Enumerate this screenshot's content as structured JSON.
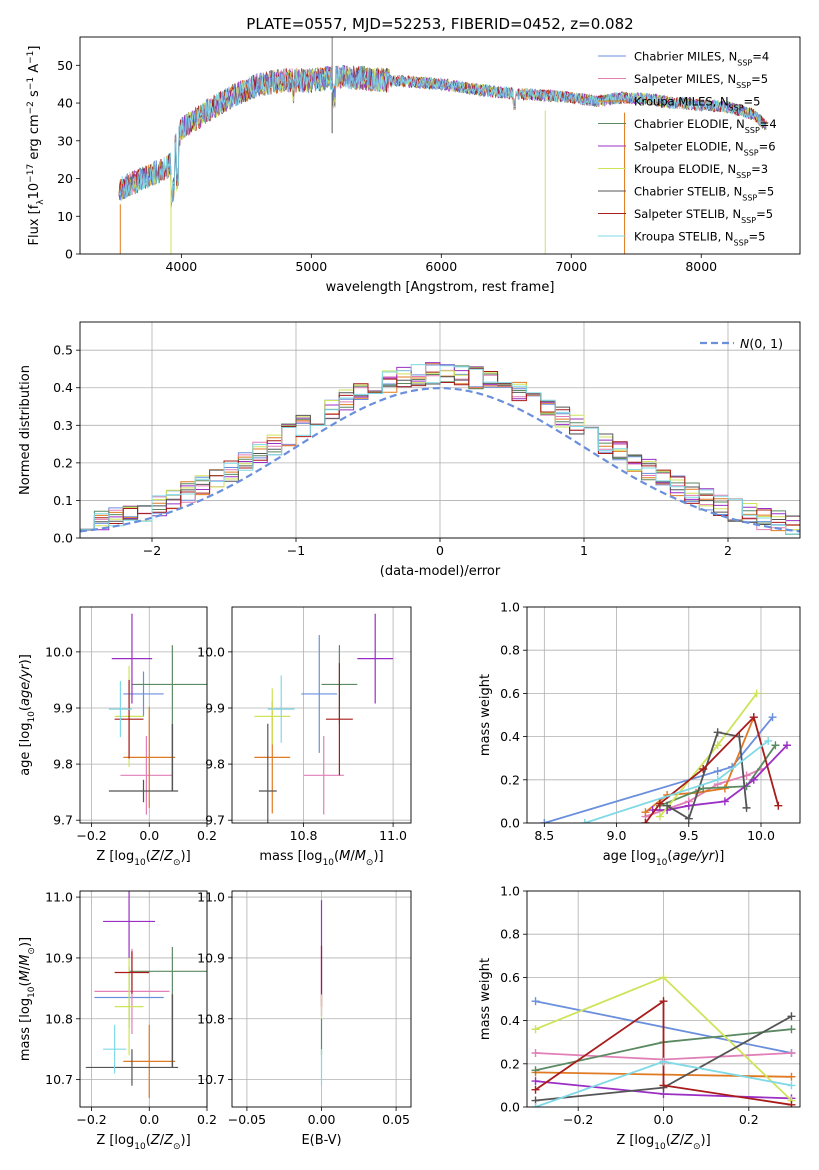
{
  "figure_title": "PLATE=0557, MJD=52253, FIBERID=0452, z=0.082",
  "colors": {
    "Chabrier MILES": "#6a8fdc",
    "Salpeter MILES": "#e17fb7",
    "Kroupa MILES": "#e07a22",
    "Chabrier ELODIE": "#5b8a62",
    "Salpeter ELODIE": "#9b2fc4",
    "Kroupa ELODIE": "#cfe35a",
    "Chabrier STELIB": "#555555",
    "Salpeter STELIB": "#a81c1c",
    "Kroupa STELIB": "#7fd9e6"
  },
  "chart_data": [
    {
      "id": "spectrum",
      "type": "line",
      "xlabel": "wavelength [Angstrom, rest frame]",
      "ylabel": "Flux [f_λ10^-17 erg cm^-2 s^-1 A^-1]",
      "xlim": [
        3220,
        8760
      ],
      "ylim": [
        0,
        57.5
      ],
      "xticks": [
        4000,
        5000,
        6000,
        7000,
        8000
      ],
      "yticks": [
        0,
        10,
        20,
        30,
        40,
        50
      ],
      "grid": false,
      "legend_position": "top-right",
      "legend": [
        {
          "model": "Chabrier MILES",
          "nssp": "4"
        },
        {
          "model": "Salpeter MILES",
          "nssp": "5"
        },
        {
          "model": "Kroupa MILES",
          "nssp": "5"
        },
        {
          "model": "Chabrier ELODIE",
          "nssp": "4"
        },
        {
          "model": "Salpeter ELODIE",
          "nssp": "6"
        },
        {
          "model": "Kroupa ELODIE",
          "nssp": "3"
        },
        {
          "model": "Chabrier STELIB",
          "nssp": "5"
        },
        {
          "model": "Salpeter STELIB",
          "nssp": "5"
        },
        {
          "model": "Kroupa STELIB",
          "nssp": "5"
        }
      ],
      "continuum": {
        "x": [
          3520,
          3700,
          3900,
          4000,
          4200,
          4400,
          4600,
          4800,
          5000,
          5200,
          5400,
          5600,
          5800,
          6000,
          6200,
          6400,
          6600,
          6800,
          7000,
          7200,
          7400,
          7600,
          7800,
          8000,
          8200,
          8400,
          8500
        ],
        "y": [
          17,
          20,
          23,
          33,
          38,
          42,
          45,
          46,
          46,
          47,
          46.5,
          46,
          45.5,
          45,
          44,
          43,
          42.5,
          42,
          41.5,
          40.5,
          41.5,
          41,
          40,
          39.5,
          39,
          37,
          34
        ]
      },
      "dropouts": [
        {
          "series": "Kroupa MILES",
          "x": 3530,
          "bottom": 0
        },
        {
          "series": "Kroupa ELODIE",
          "x": 3920,
          "bottom": 0
        },
        {
          "series": "Kroupa ELODIE",
          "x": 6800,
          "bottom": 0
        },
        {
          "series": "Kroupa MILES",
          "x": 7410,
          "bottom": 0
        },
        {
          "series": "Chabrier STELIB",
          "x": 5160,
          "bottom": 32
        }
      ]
    },
    {
      "id": "residual-histogram",
      "type": "histogram",
      "xlabel": "(data-model)/error",
      "ylabel": "Normed distribution",
      "xlim": [
        -2.5,
        2.5
      ],
      "ylim": [
        0,
        0.575
      ],
      "xticks": [
        -2,
        -1,
        0,
        1,
        2
      ],
      "yticks": [
        0.0,
        0.1,
        0.2,
        0.3,
        0.4,
        0.5
      ],
      "grid": true,
      "legend_position": "top-right",
      "reference_curve": {
        "label": "N(0,1)",
        "mean": 0,
        "sigma": 1,
        "color": "#6a8fdc"
      },
      "bin_width": 0.1,
      "bin_range": [
        -2.5,
        2.5
      ]
    },
    {
      "id": "age-vs-Z",
      "type": "errorbar",
      "xlabel": "Z [log10(Z/Z⊙)]",
      "ylabel": "age [log10(age/yr)]",
      "xlim": [
        -0.24,
        0.2
      ],
      "ylim": [
        9.695,
        10.08
      ],
      "xticks": [
        -0.2,
        0.0,
        0.2
      ],
      "yticks": [
        9.7,
        9.8,
        9.9,
        10.0
      ],
      "grid": true,
      "points": [
        {
          "series": "Chabrier MILES",
          "x": -0.02,
          "xerr": 0.07,
          "y": 9.925,
          "yerr": 0.04
        },
        {
          "series": "Salpeter MILES",
          "x": -0.01,
          "xerr": 0.09,
          "y": 9.78,
          "yerr": 0.07
        },
        {
          "series": "Kroupa MILES",
          "x": 0.0,
          "xerr": 0.09,
          "y": 9.812,
          "yerr": 0.09
        },
        {
          "series": "Chabrier ELODIE",
          "x": 0.08,
          "xerr": 0.14,
          "y": 9.942,
          "yerr": 0.07
        },
        {
          "series": "Salpeter ELODIE",
          "x": -0.06,
          "xerr": 0.07,
          "y": 9.988,
          "yerr": 0.08
        },
        {
          "series": "Kroupa ELODIE",
          "x": -0.07,
          "xerr": 0.05,
          "y": 9.885,
          "yerr": 0.09
        },
        {
          "series": "Chabrier STELIB",
          "x": -0.02,
          "xerr": 0.12,
          "y": 9.752,
          "yerr": 0.02
        },
        {
          "series": "Salpeter STELIB",
          "x": -0.07,
          "xerr": 0.05,
          "y": 9.88,
          "yerr": 0.07
        },
        {
          "series": "Kroupa STELIB",
          "x": -0.1,
          "xerr": 0.04,
          "y": 9.898,
          "yerr": 0.05
        }
      ],
      "extra_vlines": [
        {
          "series": "Chabrier STELIB",
          "x": 0.08,
          "y0": 9.752,
          "y1": 9.872
        }
      ]
    },
    {
      "id": "age-vs-mass",
      "type": "errorbar",
      "xlabel": "mass [log10(M/M⊙)]",
      "ylabel": "",
      "xlim": [
        10.64,
        11.04
      ],
      "ylim": [
        9.695,
        10.08
      ],
      "xticks": [
        10.8,
        11.0
      ],
      "yticks": [
        9.7,
        9.8,
        9.9,
        10.0
      ],
      "grid": true,
      "points": [
        {
          "series": "Chabrier MILES",
          "x": 10.835,
          "xerr": 0.04,
          "y": 9.925,
          "yerr": 0.105
        },
        {
          "series": "Salpeter MILES",
          "x": 10.845,
          "xerr": 0.045,
          "y": 9.78,
          "yerr": 0.07
        },
        {
          "series": "Kroupa MILES",
          "x": 10.73,
          "xerr": 0.04,
          "y": 9.812,
          "yerr": 0.1
        },
        {
          "series": "Chabrier ELODIE",
          "x": 10.88,
          "xerr": 0.04,
          "y": 9.942,
          "yerr": 0.07
        },
        {
          "series": "Salpeter ELODIE",
          "x": 10.96,
          "xerr": 0.04,
          "y": 9.988,
          "yerr": 0.08
        },
        {
          "series": "Kroupa ELODIE",
          "x": 10.73,
          "xerr": 0.04,
          "y": 9.885,
          "yerr": 0.05
        },
        {
          "series": "Chabrier STELIB",
          "x": 10.72,
          "xerr": 0.02,
          "y": 9.752,
          "yerr": 0.12
        },
        {
          "series": "Salpeter STELIB",
          "x": 10.88,
          "xerr": 0.03,
          "y": 9.88,
          "yerr": 0.1
        },
        {
          "series": "Kroupa STELIB",
          "x": 10.75,
          "xerr": 0.03,
          "y": 9.898,
          "yerr": 0.06
        }
      ]
    },
    {
      "id": "mass-weight-vs-age",
      "type": "line",
      "xlabel": "age [log10(age/yr)]",
      "ylabel": "mass weight",
      "xlim": [
        8.38,
        10.27
      ],
      "ylim": [
        0,
        1.0
      ],
      "xticks": [
        8.5,
        9.0,
        9.5,
        10.0
      ],
      "yticks": [
        0.0,
        0.2,
        0.4,
        0.6,
        0.8,
        1.0
      ],
      "grid": true,
      "series": [
        {
          "name": "Chabrier MILES",
          "x": [
            8.5,
            9.7,
            9.8,
            10.08
          ],
          "y": [
            0.0,
            0.24,
            0.26,
            0.49
          ]
        },
        {
          "name": "Salpeter MILES",
          "x": [
            9.2,
            9.5,
            9.7,
            9.9,
            10.0
          ],
          "y": [
            0.03,
            0.1,
            0.18,
            0.22,
            0.25
          ]
        },
        {
          "name": "Kroupa MILES",
          "x": [
            9.2,
            9.35,
            9.55,
            9.75,
            9.95
          ],
          "y": [
            0.05,
            0.13,
            0.14,
            0.16,
            0.49
          ]
        },
        {
          "name": "Chabrier ELODIE",
          "x": [
            9.3,
            9.6,
            9.9,
            10.1
          ],
          "y": [
            0.08,
            0.16,
            0.17,
            0.36
          ]
        },
        {
          "name": "Salpeter ELODIE",
          "x": [
            9.25,
            9.35,
            9.5,
            9.75,
            9.95,
            10.18
          ],
          "y": [
            0.06,
            0.06,
            0.08,
            0.1,
            0.2,
            0.36
          ]
        },
        {
          "name": "Kroupa ELODIE",
          "x": [
            9.3,
            9.7,
            9.97
          ],
          "y": [
            0.03,
            0.36,
            0.6
          ]
        },
        {
          "name": "Chabrier STELIB",
          "x": [
            9.35,
            9.5,
            9.7,
            9.85,
            9.9
          ],
          "y": [
            0.08,
            0.02,
            0.42,
            0.4,
            0.07
          ]
        },
        {
          "name": "Salpeter STELIB",
          "x": [
            9.2,
            9.3,
            9.6,
            9.95,
            10.12
          ],
          "y": [
            0.0,
            0.09,
            0.25,
            0.49,
            0.08
          ]
        },
        {
          "name": "Kroupa STELIB",
          "x": [
            8.78,
            9.7,
            10.05
          ],
          "y": [
            0.0,
            0.2,
            0.38
          ]
        }
      ]
    },
    {
      "id": "mass-vs-Z",
      "type": "errorbar",
      "xlabel": "Z [log10(Z/Z⊙)]",
      "ylabel": "mass [log10(M/M⊙)]",
      "xlim": [
        -0.24,
        0.2
      ],
      "ylim": [
        10.655,
        11.01
      ],
      "xticks": [
        -0.2,
        0.0,
        0.2
      ],
      "yticks": [
        10.7,
        10.8,
        10.9,
        11.0
      ],
      "grid": true,
      "points": [
        {
          "series": "Chabrier MILES",
          "x": -0.07,
          "xerr": 0.12,
          "y": 10.835,
          "yerr": 0.05
        },
        {
          "series": "Salpeter MILES",
          "x": -0.06,
          "xerr": 0.13,
          "y": 10.845,
          "yerr": 0.07
        },
        {
          "series": "Kroupa MILES",
          "x": 0.0,
          "xerr": 0.09,
          "y": 10.73,
          "yerr": 0.06
        },
        {
          "series": "Chabrier ELODIE",
          "x": 0.08,
          "xerr": 0.15,
          "y": 10.878,
          "yerr": 0.04
        },
        {
          "series": "Salpeter ELODIE",
          "x": -0.07,
          "xerr": 0.09,
          "y": 10.96,
          "yerr": 0.06
        },
        {
          "series": "Kroupa ELODIE",
          "x": -0.07,
          "xerr": 0.05,
          "y": 10.82,
          "yerr": 0.08
        },
        {
          "series": "Chabrier STELIB",
          "x": -0.06,
          "xerr": 0.16,
          "y": 10.72,
          "yerr": 0.03
        },
        {
          "series": "Salpeter STELIB",
          "x": -0.06,
          "xerr": 0.06,
          "y": 10.876,
          "yerr": 0.035
        },
        {
          "series": "Kroupa STELIB",
          "x": -0.12,
          "xerr": 0.04,
          "y": 10.75,
          "yerr": 0.04
        }
      ],
      "extra_vlines": [
        {
          "series": "Chabrier STELIB",
          "x": 0.08,
          "y0": 10.72,
          "y1": 10.84
        }
      ]
    },
    {
      "id": "mass-vs-ebv",
      "type": "errorbar",
      "xlabel": "E(B-V)",
      "ylabel": "",
      "xlim": [
        -0.06,
        0.06
      ],
      "ylim": [
        10.655,
        11.01
      ],
      "xticks": [
        -0.05,
        0.0,
        0.05
      ],
      "yticks": [
        10.7,
        10.8,
        10.9,
        11.0
      ],
      "grid": true,
      "points": [
        {
          "series": "Salpeter ELODIE",
          "x": 0.0,
          "xerr": 0.0,
          "y": 10.9,
          "yerr": 0.095
        },
        {
          "series": "Salpeter STELIB",
          "x": 0.0,
          "xerr": 0.0,
          "y": 10.87,
          "yerr": 0.05
        },
        {
          "series": "Kroupa ELODIE",
          "x": 0.0,
          "xerr": 0.0,
          "y": 10.82,
          "yerr": 0.02
        },
        {
          "series": "Chabrier ELODIE",
          "x": 0.0,
          "xerr": 0.0,
          "y": 10.77,
          "yerr": 0.03
        },
        {
          "series": "Kroupa STELIB",
          "x": 0.0,
          "xerr": 0.0,
          "y": 10.72,
          "yerr": 0.03
        }
      ]
    },
    {
      "id": "mass-weight-vs-Z",
      "type": "line",
      "xlabel": "Z [log10(Z/Z⊙)]",
      "ylabel": "mass weight",
      "xlim": [
        -0.32,
        0.32
      ],
      "ylim": [
        0,
        1.0
      ],
      "xticks": [
        -0.2,
        0.0,
        0.2
      ],
      "yticks": [
        0.0,
        0.2,
        0.4,
        0.6,
        0.8,
        1.0
      ],
      "grid": true,
      "series": [
        {
          "name": "Chabrier MILES",
          "x": [
            -0.3,
            0.3
          ],
          "y": [
            0.49,
            0.25
          ]
        },
        {
          "name": "Salpeter MILES",
          "x": [
            -0.3,
            0.0,
            0.3
          ],
          "y": [
            0.25,
            0.22,
            0.25
          ]
        },
        {
          "name": "Kroupa MILES",
          "x": [
            -0.3,
            0.3
          ],
          "y": [
            0.16,
            0.14
          ]
        },
        {
          "name": "Chabrier ELODIE",
          "x": [
            -0.3,
            0.0,
            0.3
          ],
          "y": [
            0.17,
            0.3,
            0.36
          ]
        },
        {
          "name": "Salpeter ELODIE",
          "x": [
            -0.3,
            0.0,
            0.3
          ],
          "y": [
            0.12,
            0.06,
            0.04
          ]
        },
        {
          "name": "Kroupa ELODIE",
          "x": [
            -0.3,
            0.0,
            0.3
          ],
          "y": [
            0.36,
            0.6,
            0.03
          ]
        },
        {
          "name": "Chabrier STELIB",
          "x": [
            -0.3,
            0.0,
            0.3
          ],
          "y": [
            0.03,
            0.09,
            0.42
          ]
        },
        {
          "name": "Salpeter STELIB",
          "x": [
            -0.3,
            0.0,
            0.0,
            0.3
          ],
          "y": [
            0.08,
            0.49,
            0.1,
            0.01
          ]
        },
        {
          "name": "Kroupa STELIB",
          "x": [
            -0.3,
            0.0,
            0.3
          ],
          "y": [
            0.0,
            0.21,
            0.1
          ]
        }
      ]
    }
  ]
}
